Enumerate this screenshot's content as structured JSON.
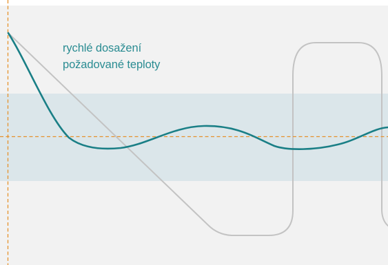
{
  "annotation": {
    "line1": "rychlé dosažení",
    "line2": "požadované teploty"
  },
  "colors": {
    "background": "#f2f2f2",
    "band": "#dbe6ea",
    "controlled_curve": "#1a7f86",
    "uncontrolled_curve": "#c3c3c3",
    "reference_line": "#e6912b",
    "annotation_text": "#2a8c92"
  }
}
